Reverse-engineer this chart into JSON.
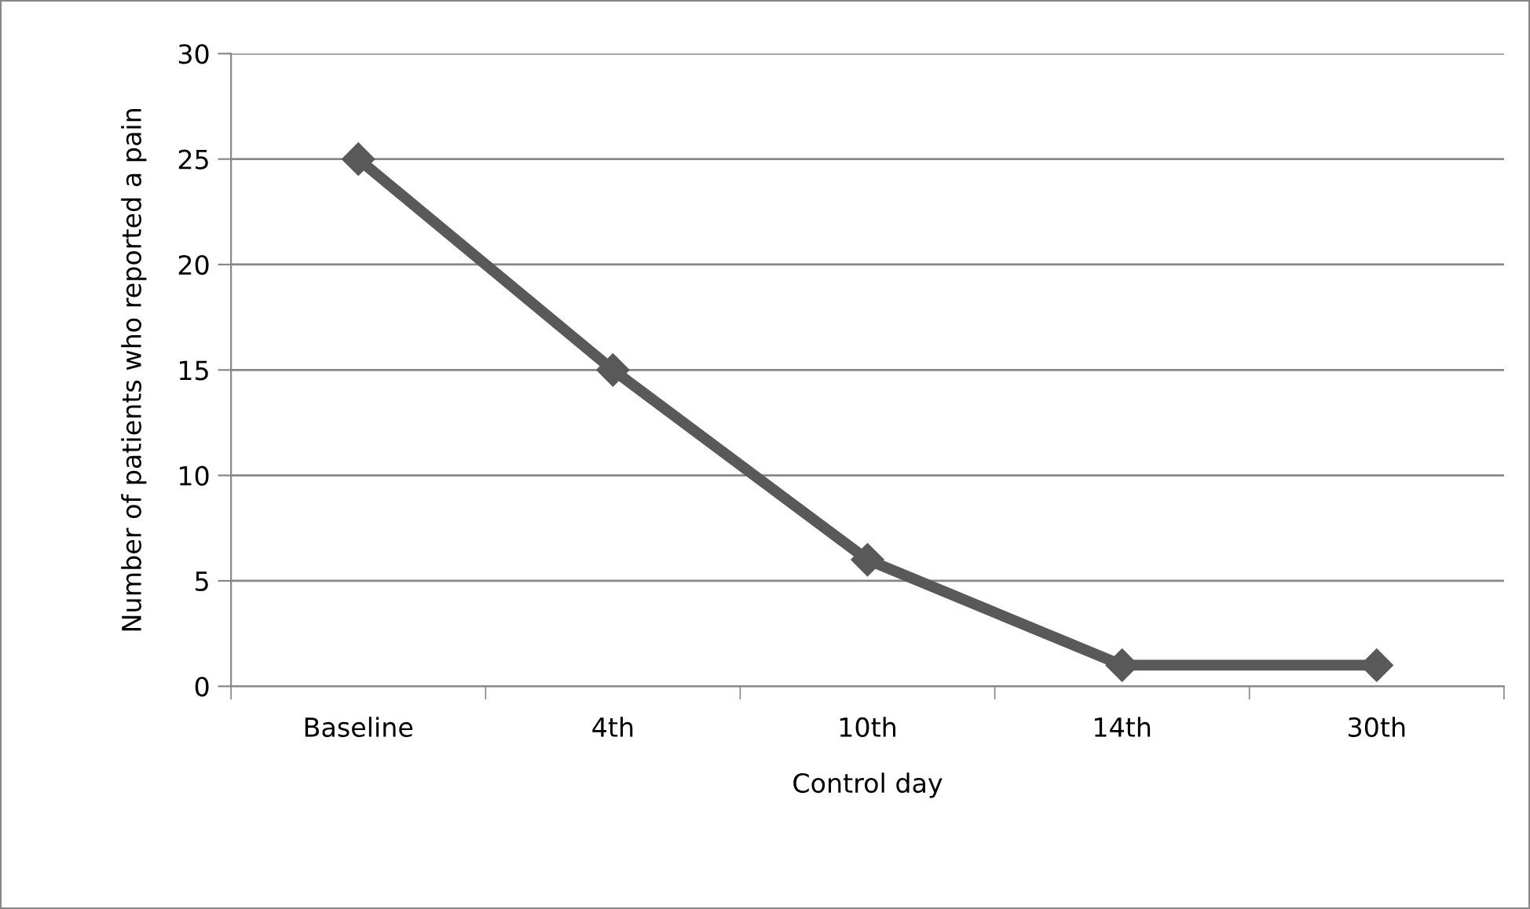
{
  "chart_data": {
    "type": "line",
    "xlabel": "Control day",
    "ylabel": "Number of patients who reported a pain",
    "categories": [
      "Baseline",
      "4th",
      "10th",
      "14th",
      "30th"
    ],
    "series": [
      {
        "color": "#595959",
        "values": [
          25,
          15,
          6,
          1,
          1
        ]
      }
    ],
    "ylim": [
      0,
      30
    ],
    "yticks": [
      0,
      5,
      10,
      15,
      20,
      25,
      30
    ],
    "grid": "y",
    "legend": false,
    "marker": "diamond",
    "line_style": "solid"
  }
}
